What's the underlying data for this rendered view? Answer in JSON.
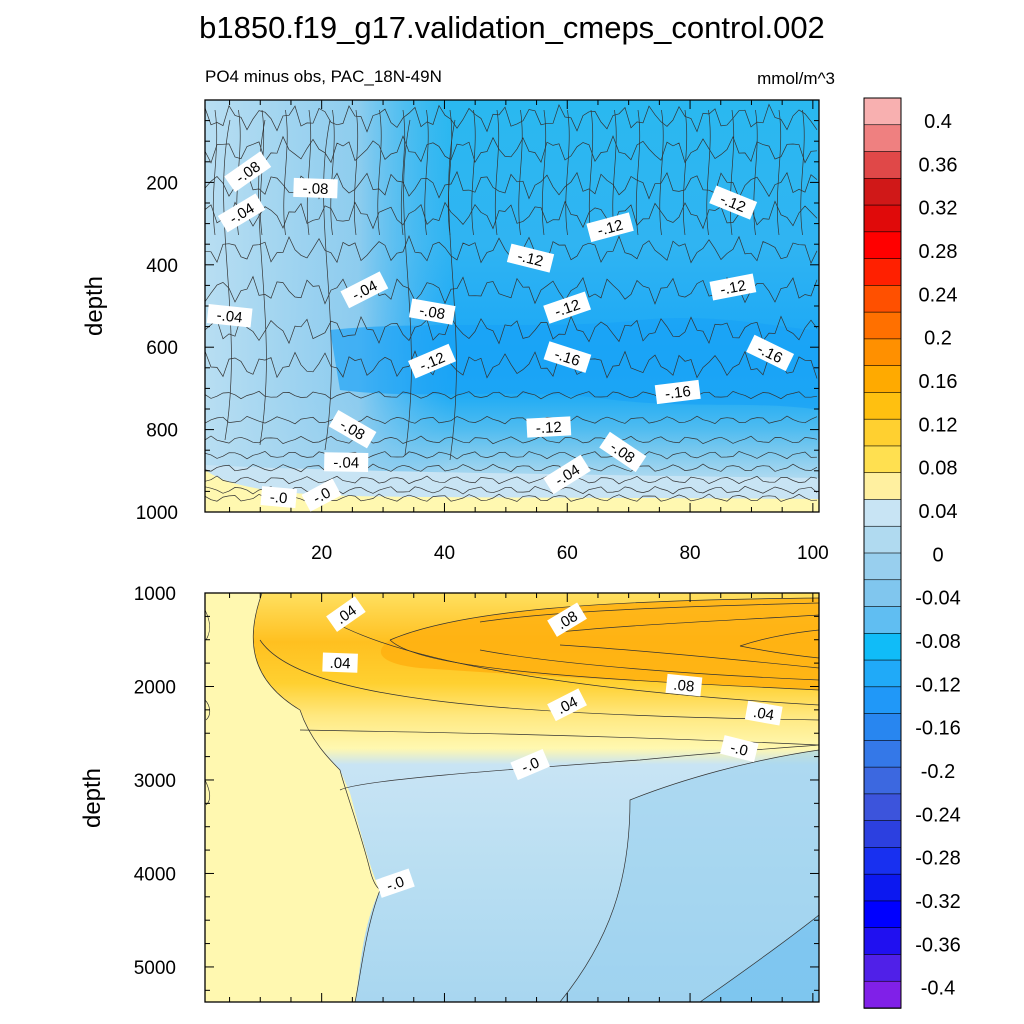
{
  "title": "b1850.f19_g17.validation_cmeps_control.002",
  "chart_data": [
    {
      "type": "heatmap",
      "panel": "top",
      "subtitle": "PO4 minus obs, PAC_18N-49N",
      "units": "mmol/m^3",
      "xlabel": "",
      "ylabel": "depth",
      "xlim": [
        1,
        101
      ],
      "ylim": [
        0,
        1000
      ],
      "y_reversed": true,
      "x_ticks": [
        20,
        40,
        60,
        80,
        100
      ],
      "y_ticks": [
        200,
        400,
        600,
        800,
        1000
      ],
      "contour_labels": [
        {
          "text": "-.08",
          "x": 8,
          "y": 175
        },
        {
          "text": "-.08",
          "x": 19,
          "y": 215
        },
        {
          "text": "-.04",
          "x": 7,
          "y": 275
        },
        {
          "text": "-.04",
          "x": 5,
          "y": 525
        },
        {
          "text": "-.04",
          "x": 27,
          "y": 462
        },
        {
          "text": "-.08",
          "x": 38,
          "y": 515
        },
        {
          "text": "-.12",
          "x": 38,
          "y": 635
        },
        {
          "text": "-.12",
          "x": 54,
          "y": 385
        },
        {
          "text": "-.12",
          "x": 60,
          "y": 505
        },
        {
          "text": "-.16",
          "x": 60,
          "y": 625
        },
        {
          "text": "-.12",
          "x": 67,
          "y": 310
        },
        {
          "text": "-.12",
          "x": 87,
          "y": 250
        },
        {
          "text": "-.12",
          "x": 87,
          "y": 455
        },
        {
          "text": "-.16",
          "x": 93,
          "y": 615
        },
        {
          "text": "-.16",
          "x": 78,
          "y": 710
        },
        {
          "text": "-.08",
          "x": 25,
          "y": 800
        },
        {
          "text": "-.12",
          "x": 57,
          "y": 795
        },
        {
          "text": "-.08",
          "x": 69,
          "y": 855
        },
        {
          "text": "-.04",
          "x": 24,
          "y": 880
        },
        {
          "text": "-.04",
          "x": 60,
          "y": 910
        },
        {
          "text": "-.0",
          "x": 13,
          "y": 965
        },
        {
          "text": "-.0",
          "x": 20,
          "y": 960
        }
      ]
    },
    {
      "type": "heatmap",
      "panel": "bottom",
      "xlabel": "",
      "ylabel": "depth",
      "xlim": [
        1,
        101
      ],
      "ylim": [
        1000,
        5375
      ],
      "y_reversed": true,
      "y_ticks": [
        1000,
        2000,
        3000,
        4000,
        5000
      ],
      "contour_labels": [
        {
          "text": ".04",
          "x": 24,
          "y": 1230
        },
        {
          "text": ".04",
          "x": 23,
          "y": 1750
        },
        {
          "text": ".08",
          "x": 60,
          "y": 1290
        },
        {
          "text": ".08",
          "x": 79,
          "y": 1990
        },
        {
          "text": ".04",
          "x": 60,
          "y": 2200
        },
        {
          "text": ".04",
          "x": 92,
          "y": 2290
        },
        {
          "text": "-.0",
          "x": 54,
          "y": 2840
        },
        {
          "text": "-.0",
          "x": 88,
          "y": 2670
        },
        {
          "text": "-.0",
          "x": 32,
          "y": 4110
        }
      ]
    }
  ],
  "colorbar": {
    "levels": [
      "0.4",
      "0.36",
      "0.32",
      "0.28",
      "0.24",
      "0.2",
      "0.16",
      "0.12",
      "0.08",
      "0.04",
      "0",
      "-0.04",
      "-0.08",
      "-0.12",
      "-0.16",
      "-0.2",
      "-0.24",
      "-0.28",
      "-0.32",
      "-0.36",
      "-0.4"
    ],
    "colors": [
      "#f8b0b0",
      "#ef8080",
      "#e04848",
      "#d01818",
      "#e00a0a",
      "#ff0000",
      "#ff2000",
      "#ff5000",
      "#ff7000",
      "#ff9000",
      "#ffaa00",
      "#ffc010",
      "#ffd030",
      "#ffe050",
      "#fff0a0",
      "#c8e4f4",
      "#b0daf0",
      "#98cfee",
      "#80c6ee",
      "#60bef2",
      "#10bcf8",
      "#20aaf8",
      "#2098f8",
      "#2886f0",
      "#3478e8",
      "#3c68e0",
      "#3c54dc",
      "#2c40e0",
      "#1830f0",
      "#0c18f0",
      "#0000ff",
      "#2010f0",
      "#5020e8",
      "#8020e8"
    ]
  }
}
